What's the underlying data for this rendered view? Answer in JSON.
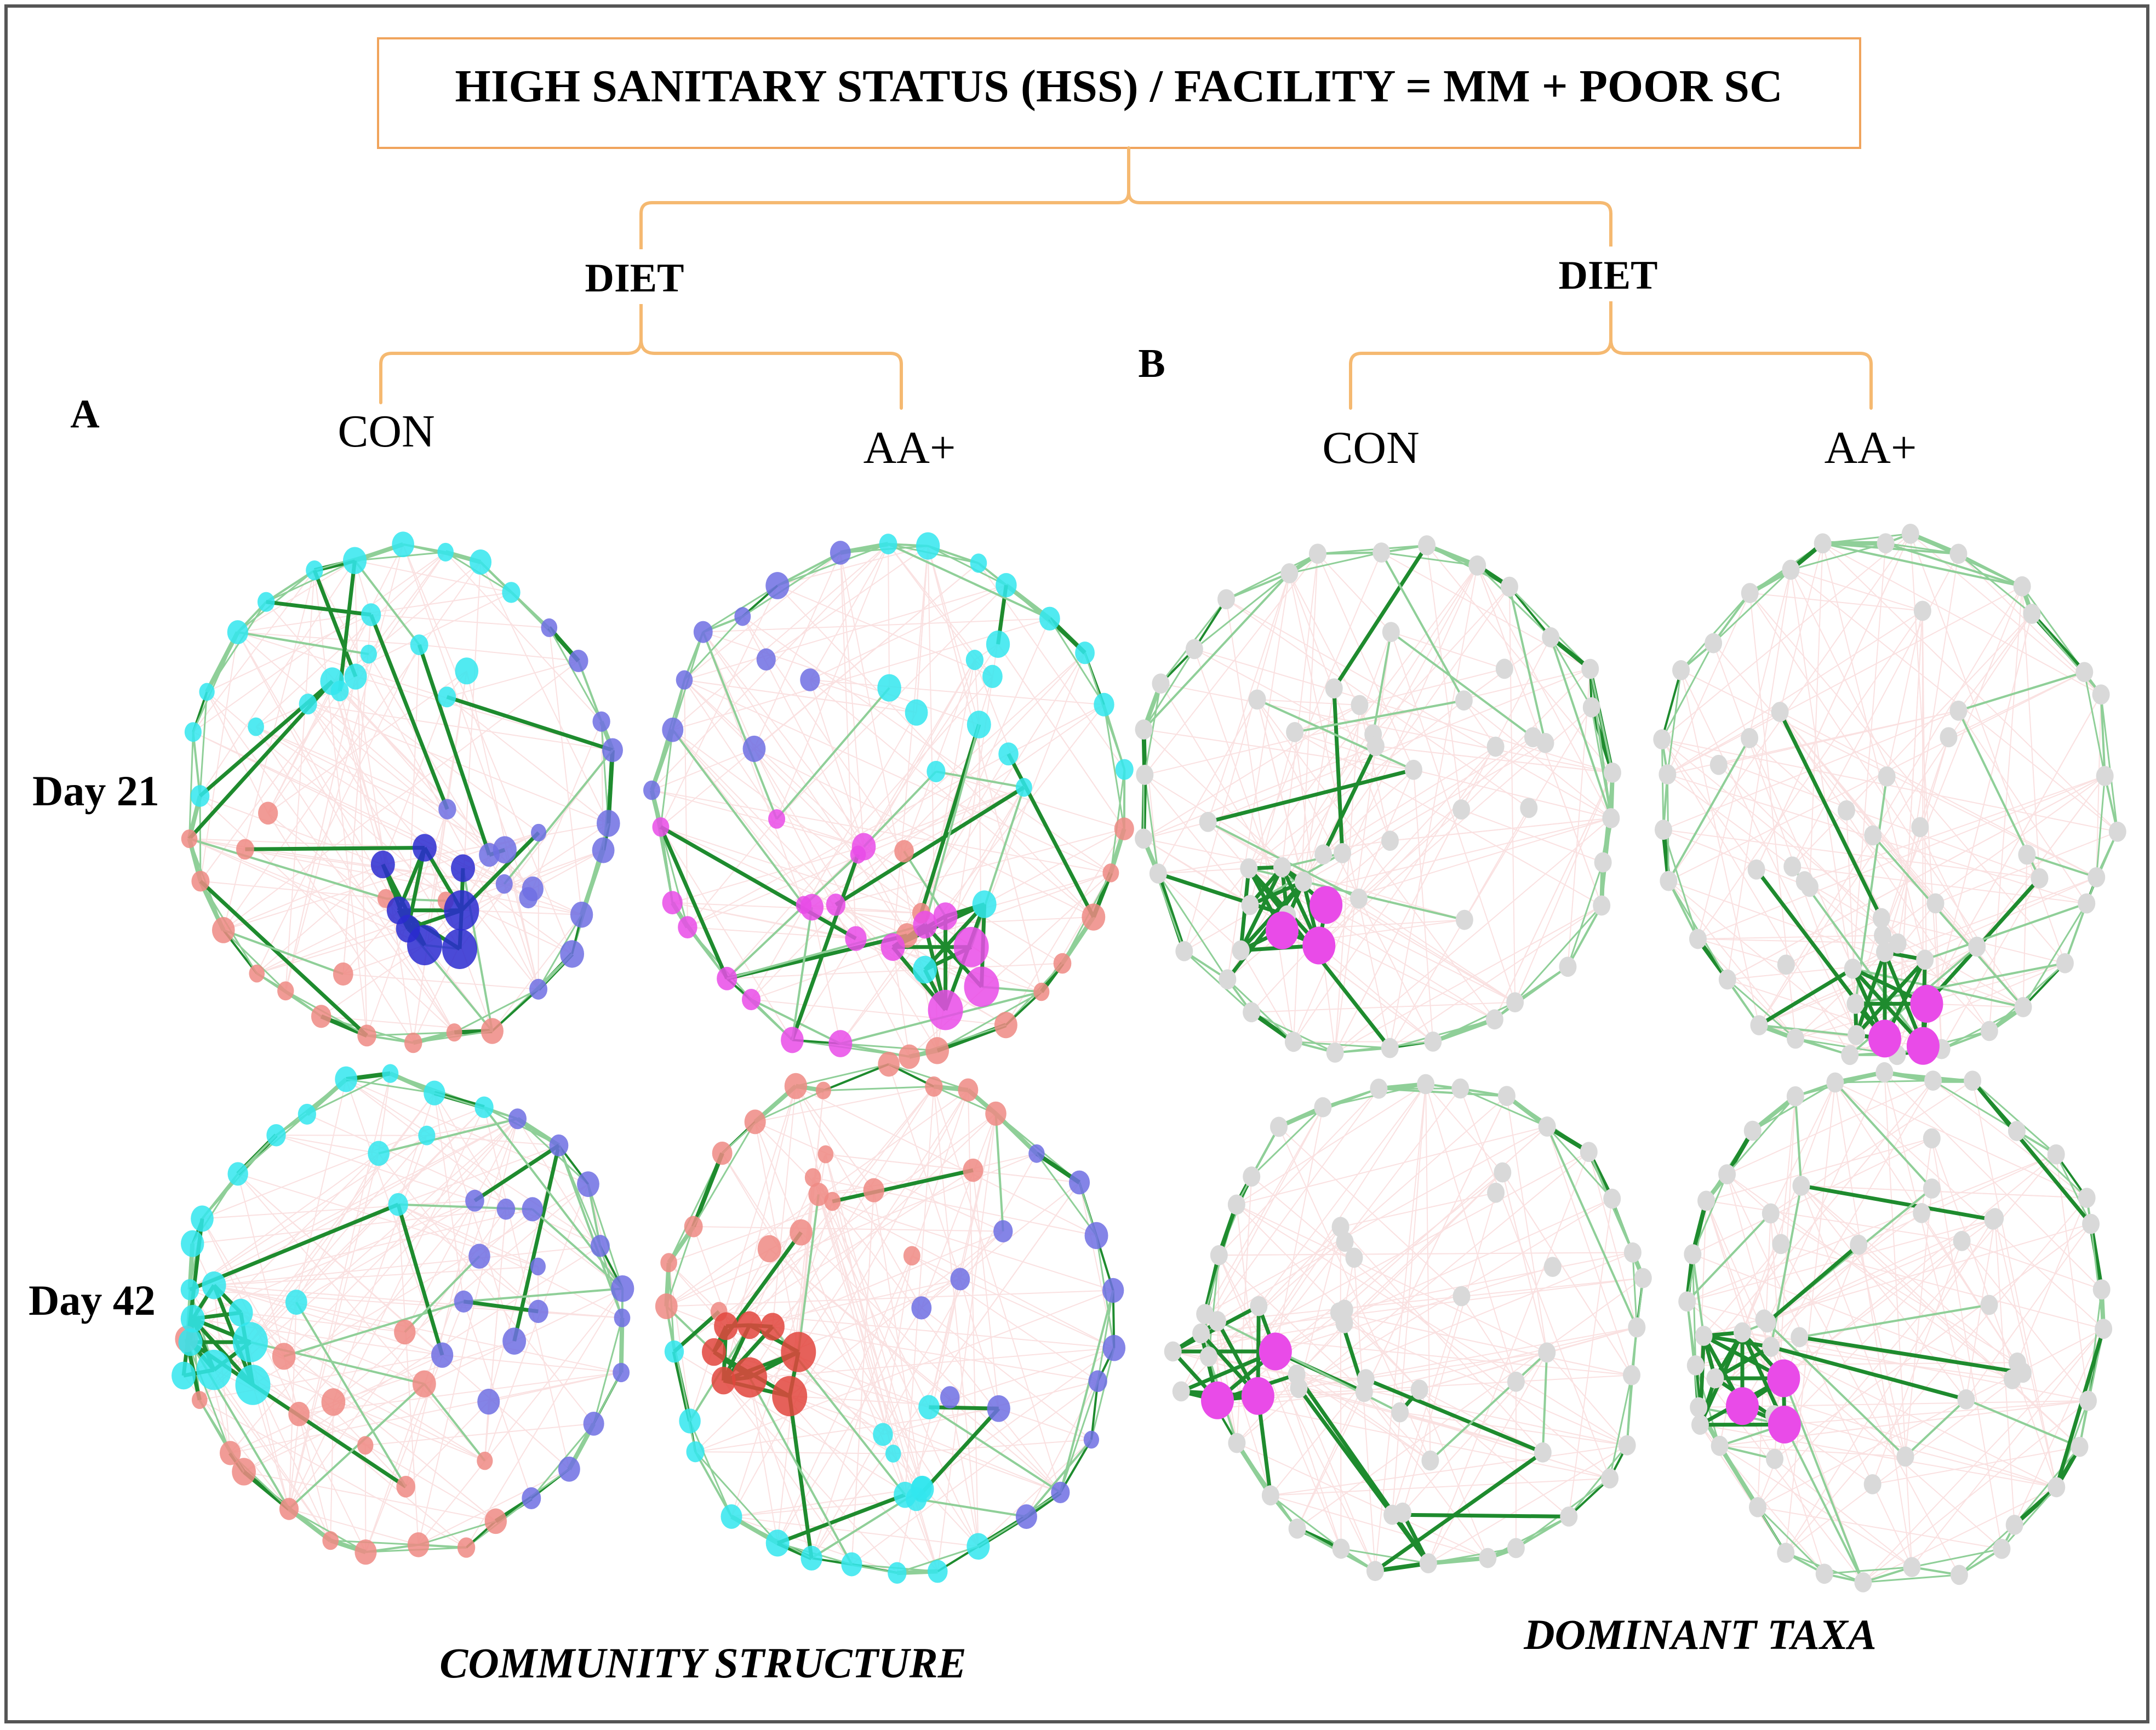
{
  "header": {
    "title": "HIGH SANITARY STATUS (HSS) / FACILITY = MM + POOR SC"
  },
  "branches": {
    "left": {
      "label": "DIET",
      "groups": [
        "CON",
        "AA+"
      ]
    },
    "right": {
      "label": "DIET",
      "groups": [
        "CON",
        "AA+"
      ]
    }
  },
  "panels": {
    "a": "A",
    "b": "B"
  },
  "rows": [
    "Day 21",
    "Day 42"
  ],
  "footers": {
    "left": "COMMUNITY STRUCTURE",
    "right": "DOMINANT TAXA"
  },
  "colors": {
    "tree": "#f5b971",
    "box_border": "#f0a45c",
    "edge_dark": "#1e8b2e",
    "edge_light": "#8fcf98",
    "edge_pink": "#f6c9c9",
    "node_cyan": "#33e6ee",
    "node_blue": "#6f6fe3",
    "node_blue_dark": "#2a2ad0",
    "node_red": "#ef8a84",
    "node_red_dark": "#e2453d",
    "node_magenta": "#e94be8",
    "node_gray": "#d9d9d9"
  },
  "networks": [
    {
      "id": "a-con-d21",
      "scheme": "community",
      "seed": 11,
      "colors": [
        "cyan",
        "blue",
        "red"
      ],
      "hubs": [
        "blue_dark",
        "blue_dark",
        "blue_dark"
      ]
    },
    {
      "id": "a-aa-d21",
      "scheme": "community",
      "seed": 23,
      "colors": [
        "blue",
        "cyan",
        "red",
        "magenta"
      ],
      "hubs": [
        "magenta",
        "magenta",
        "magenta",
        "cyan"
      ]
    },
    {
      "id": "b-con-d21",
      "scheme": "dominant",
      "seed": 31,
      "hubs": 3
    },
    {
      "id": "b-aa-d21",
      "scheme": "dominant",
      "seed": 47,
      "hubs": 3
    },
    {
      "id": "a-con-d42",
      "scheme": "community",
      "seed": 53,
      "colors": [
        "cyan",
        "blue",
        "red"
      ],
      "hubs": [
        "cyan",
        "cyan",
        "cyan"
      ]
    },
    {
      "id": "a-aa-d42",
      "scheme": "community",
      "seed": 67,
      "colors": [
        "red",
        "blue",
        "cyan"
      ],
      "hubs": [
        "red_dark",
        "red_dark",
        "red_dark"
      ]
    },
    {
      "id": "b-con-d42",
      "scheme": "dominant",
      "seed": 71,
      "hubs": 3
    },
    {
      "id": "b-aa-d42",
      "scheme": "dominant",
      "seed": 89,
      "hubs": 3
    }
  ]
}
